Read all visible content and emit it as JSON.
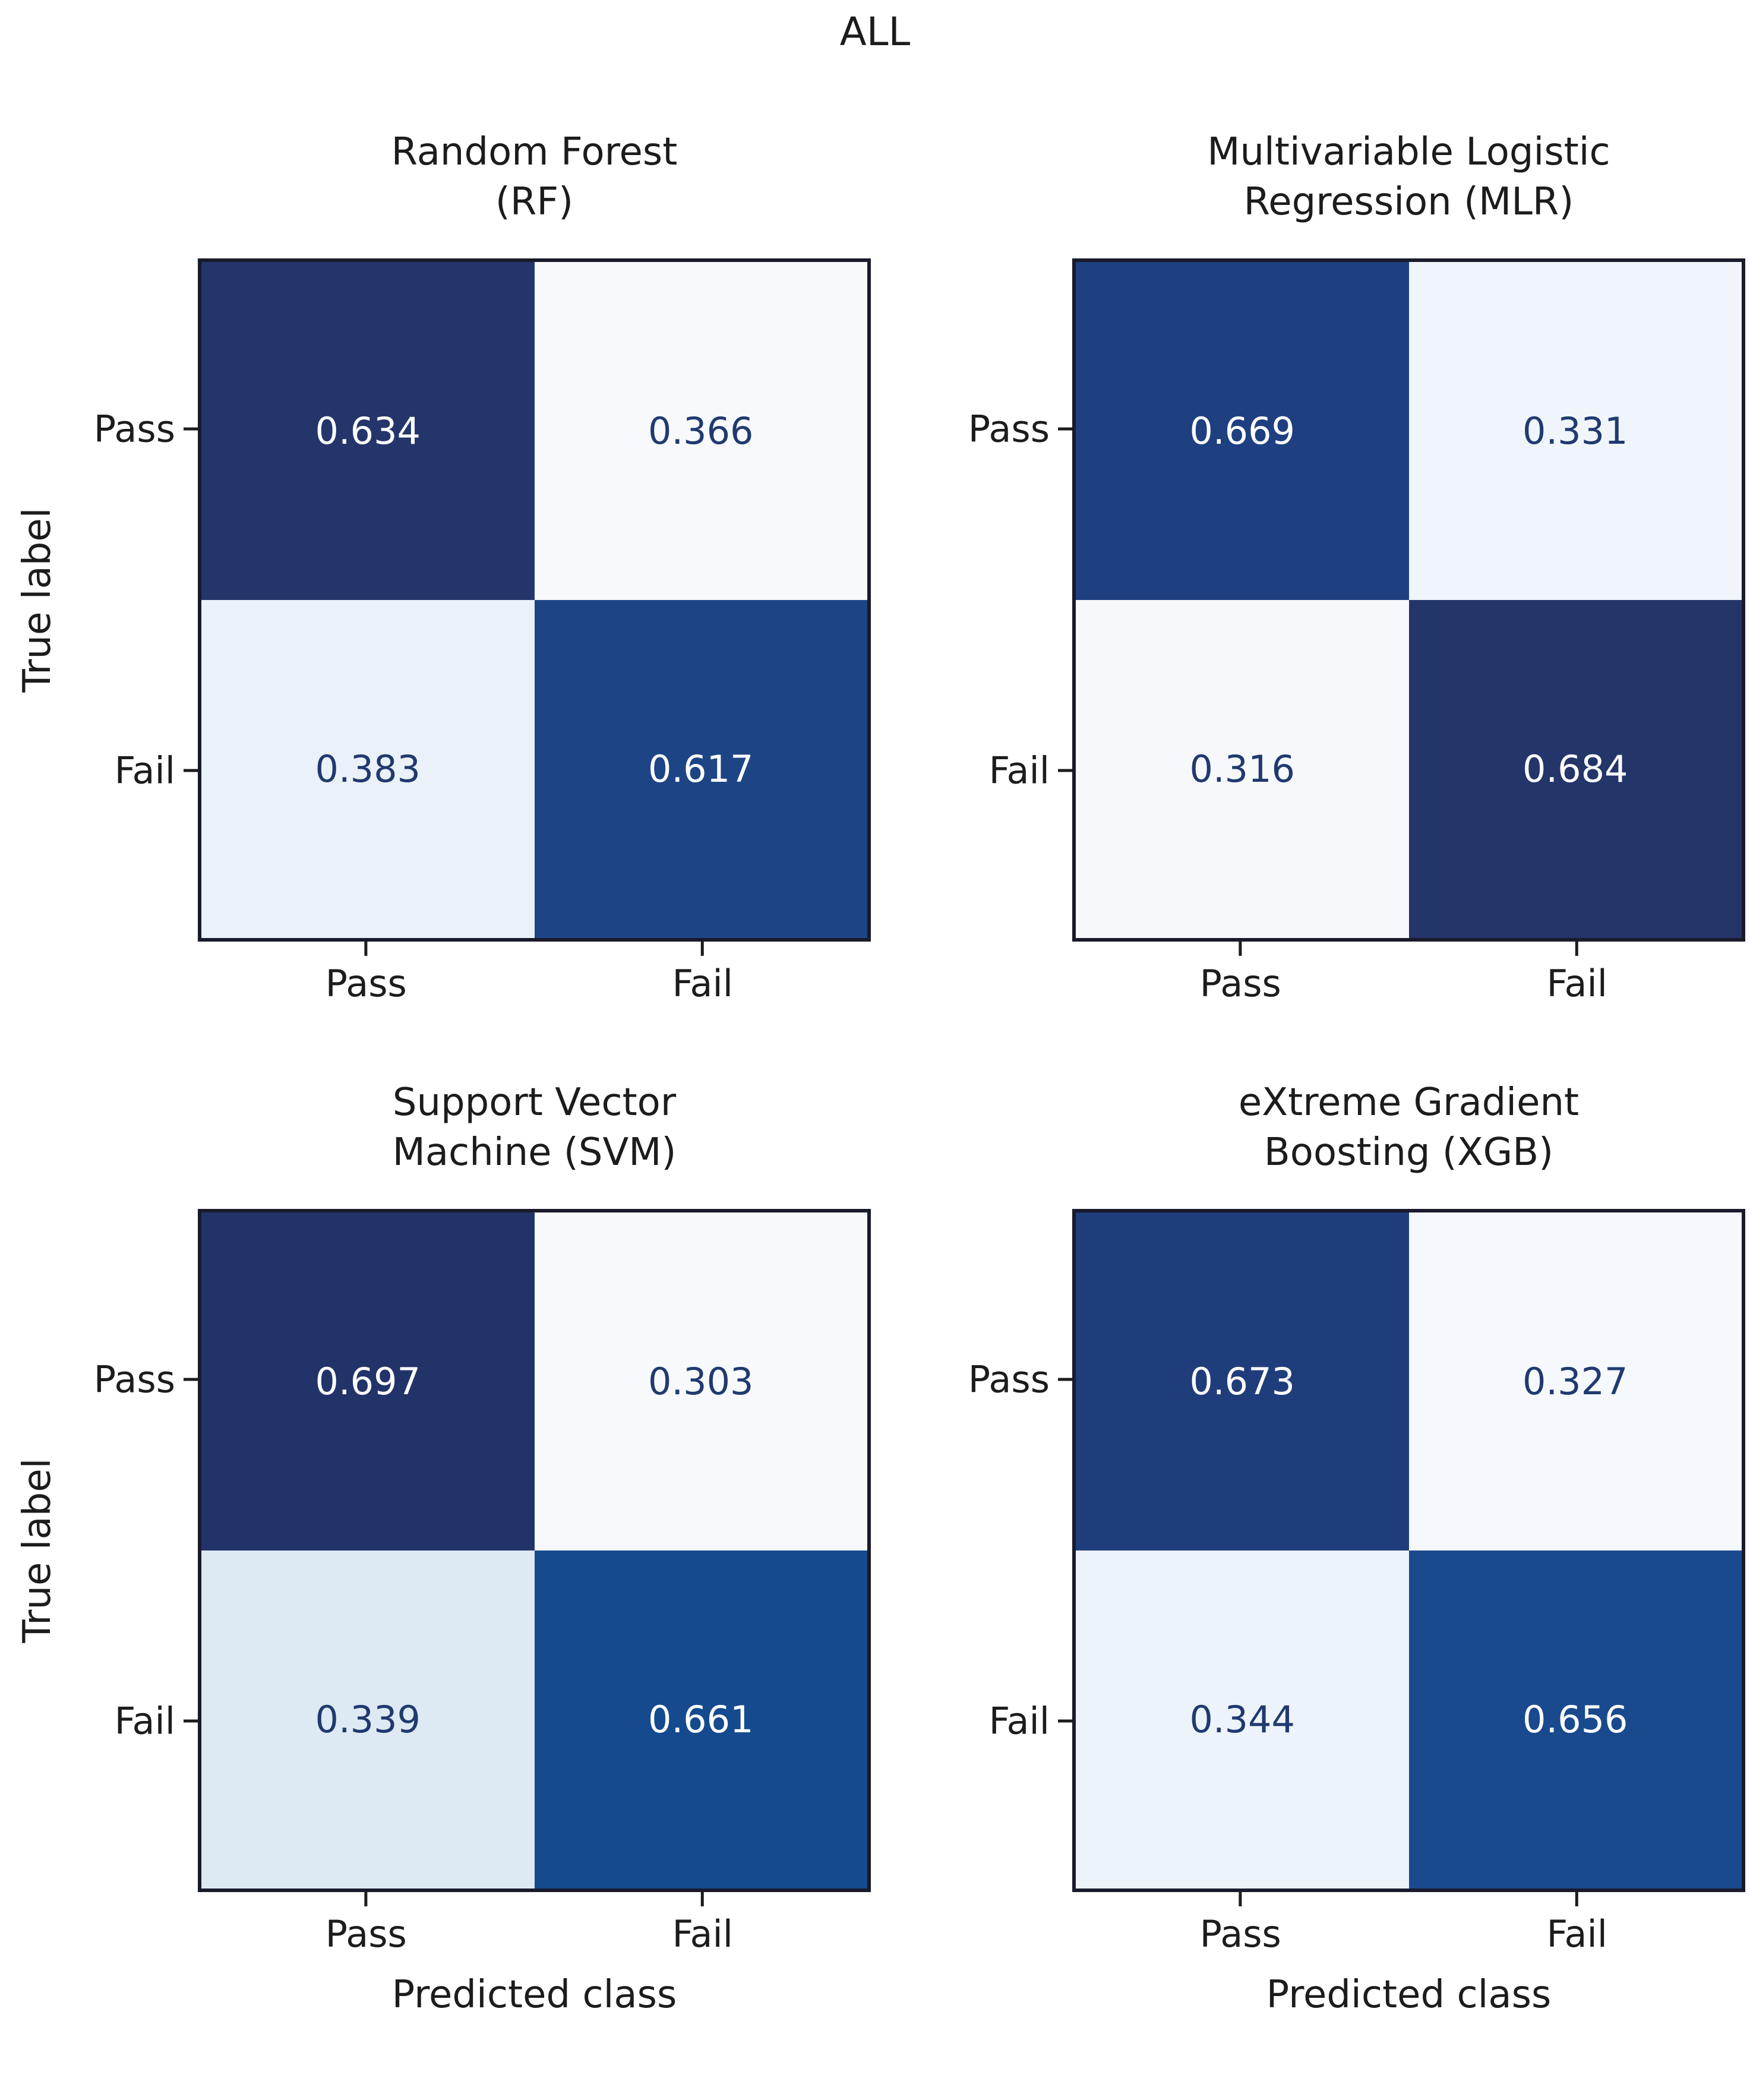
{
  "figure_title": "ALL",
  "axes": {
    "y_label": "True label",
    "x_label": "Predicted class",
    "tick_pass": "Pass",
    "tick_fail": "Fail"
  },
  "colors": {
    "background": "#ffffff",
    "matrix_border": "#191a2b",
    "dark_cell_text": "#ffffff",
    "light_cell_text": "#203a70",
    "axis_text": "#1c1c1c"
  },
  "subplots": [
    {
      "id": "rf",
      "title1": "Random Forest",
      "title2": "(RF)",
      "cells": [
        {
          "label": "0.634",
          "bg": "#24356b",
          "fg": "#ffffff"
        },
        {
          "label": "0.366",
          "bg": "#f7f9fc",
          "fg": "#203a70"
        },
        {
          "label": "0.383",
          "bg": "#eaf1f8",
          "fg": "#203a70"
        },
        {
          "label": "0.617",
          "bg": "#1d4586",
          "fg": "#ffffff"
        }
      ]
    },
    {
      "id": "mlr",
      "title1": "Multivariable Logistic",
      "title2": "Regression (MLR)",
      "cells": [
        {
          "label": "0.669",
          "bg": "#1e4080",
          "fg": "#ffffff"
        },
        {
          "label": "0.331",
          "bg": "#f0f5fb",
          "fg": "#203a70"
        },
        {
          "label": "0.316",
          "bg": "#f6f8fc",
          "fg": "#203a70"
        },
        {
          "label": "0.684",
          "bg": "#233569",
          "fg": "#ffffff"
        }
      ]
    },
    {
      "id": "svm",
      "title1": "Support Vector",
      "title2": "Machine (SVM)",
      "cells": [
        {
          "label": "0.697",
          "bg": "#22336a",
          "fg": "#ffffff"
        },
        {
          "label": "0.303",
          "bg": "#f7f9fc",
          "fg": "#203a70"
        },
        {
          "label": "0.339",
          "bg": "#ddeaf4",
          "fg": "#203a70"
        },
        {
          "label": "0.661",
          "bg": "#154a8e",
          "fg": "#ffffff"
        }
      ]
    },
    {
      "id": "xgb",
      "title1": "eXtreme Gradient",
      "title2": "Boosting (XGB)",
      "cells": [
        {
          "label": "0.673",
          "bg": "#203d7b",
          "fg": "#ffffff"
        },
        {
          "label": "0.327",
          "bg": "#f5f8fc",
          "fg": "#203a70"
        },
        {
          "label": "0.344",
          "bg": "#edf3fa",
          "fg": "#203a70"
        },
        {
          "label": "0.656",
          "bg": "#1a4a8e",
          "fg": "#ffffff"
        }
      ]
    }
  ],
  "chart_data": [
    {
      "type": "heatmap",
      "title": "Random Forest (RF)",
      "suptitle": "ALL",
      "x_categories": [
        "Pass",
        "Fail"
      ],
      "y_categories": [
        "Pass",
        "Fail"
      ],
      "values": [
        [
          0.634,
          0.366
        ],
        [
          0.383,
          0.617
        ]
      ],
      "xlabel": "Predicted class",
      "ylabel": "True label",
      "colormap": "Blues",
      "value_range": [
        0,
        1
      ],
      "legend": "none",
      "grid": false
    },
    {
      "type": "heatmap",
      "title": "Multivariable Logistic Regression (MLR)",
      "suptitle": "ALL",
      "x_categories": [
        "Pass",
        "Fail"
      ],
      "y_categories": [
        "Pass",
        "Fail"
      ],
      "values": [
        [
          0.669,
          0.331
        ],
        [
          0.316,
          0.684
        ]
      ],
      "xlabel": "Predicted class",
      "ylabel": "True label",
      "colormap": "Blues",
      "value_range": [
        0,
        1
      ],
      "legend": "none",
      "grid": false
    },
    {
      "type": "heatmap",
      "title": "Support Vector Machine (SVM)",
      "suptitle": "ALL",
      "x_categories": [
        "Pass",
        "Fail"
      ],
      "y_categories": [
        "Pass",
        "Fail"
      ],
      "values": [
        [
          0.697,
          0.303
        ],
        [
          0.339,
          0.661
        ]
      ],
      "xlabel": "Predicted class",
      "ylabel": "True label",
      "colormap": "Blues",
      "value_range": [
        0,
        1
      ],
      "legend": "none",
      "grid": false
    },
    {
      "type": "heatmap",
      "title": "eXtreme Gradient Boosting (XGB)",
      "suptitle": "ALL",
      "x_categories": [
        "Pass",
        "Fail"
      ],
      "y_categories": [
        "Pass",
        "Fail"
      ],
      "values": [
        [
          0.673,
          0.327
        ],
        [
          0.344,
          0.656
        ]
      ],
      "xlabel": "Predicted class",
      "ylabel": "True label",
      "colormap": "Blues",
      "value_range": [
        0,
        1
      ],
      "legend": "none",
      "grid": false
    }
  ]
}
